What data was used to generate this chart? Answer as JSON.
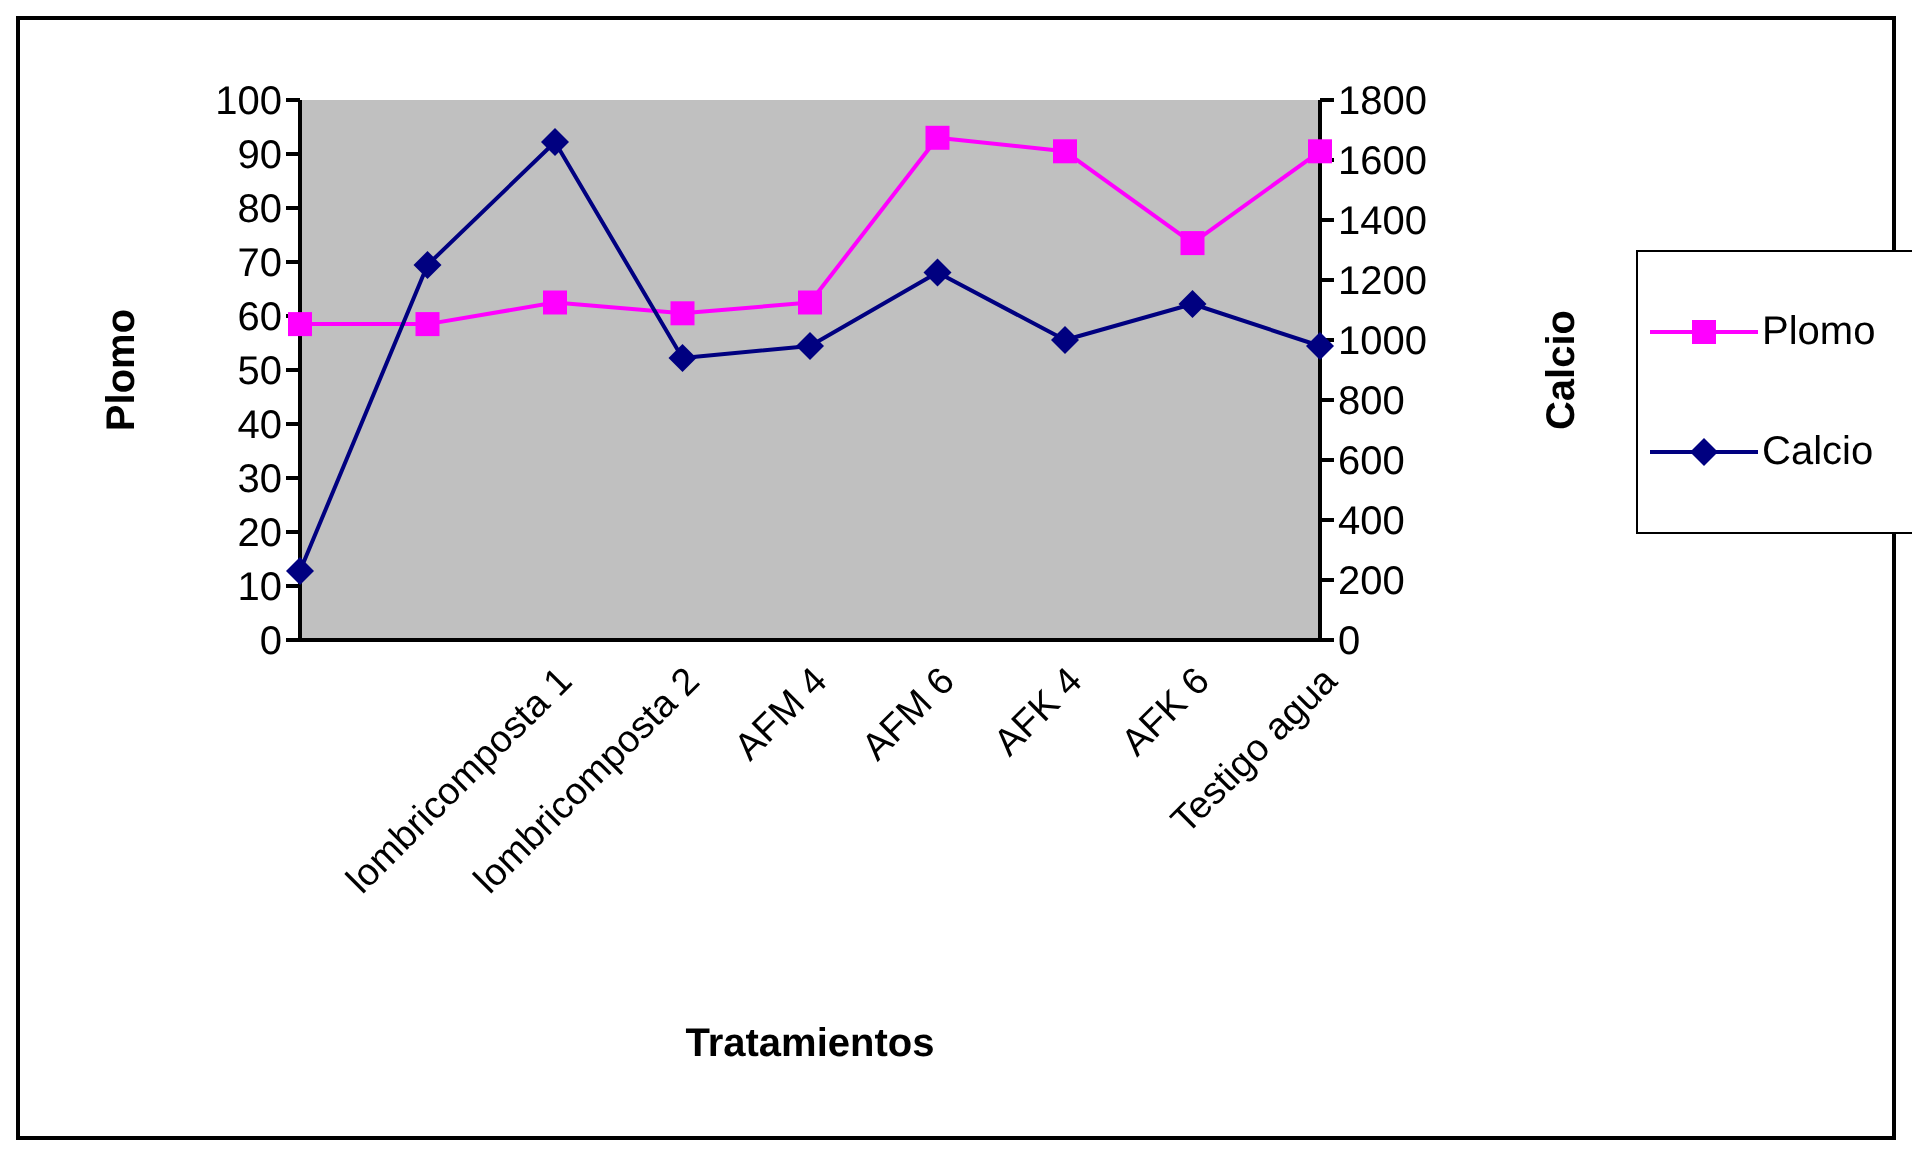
{
  "chart_data": {
    "type": "line",
    "xlabel": "Tratamientos",
    "ylabel": "Plomo",
    "y2label": "Calcio",
    "categories": [
      null,
      null,
      "lombricomposta 1",
      "lombricomposta 2",
      "AFM 4",
      "AFM 6",
      "AFK 4",
      "AFK 6",
      "Testigo agua"
    ],
    "series": [
      {
        "name": "Plomo",
        "color": "#ff00ff",
        "marker": "square",
        "values": [
          58.5,
          58.5,
          62.5,
          60.5,
          62.5,
          93,
          90.5,
          73.5,
          90.5
        ]
      },
      {
        "name": "Calcio",
        "color": "#000080",
        "marker": "diamond",
        "axis": "y2",
        "values": [
          230,
          1250,
          1660,
          940,
          980,
          1225,
          1000,
          1120,
          980
        ]
      }
    ],
    "ylim": [
      0,
      100
    ],
    "yticks": [
      0,
      10,
      20,
      30,
      40,
      50,
      60,
      70,
      80,
      90,
      100
    ],
    "y2lim": [
      0,
      1800
    ],
    "y2ticks": [
      0,
      200,
      400,
      600,
      800,
      1000,
      1200,
      1400,
      1600,
      1800
    ],
    "grid": false,
    "legend": "right"
  }
}
